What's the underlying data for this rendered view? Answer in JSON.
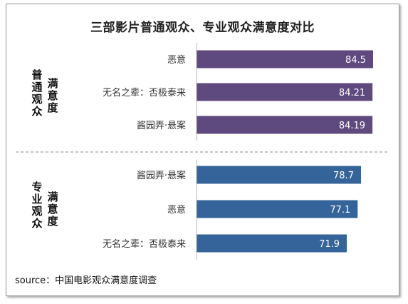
{
  "chart_data": {
    "type": "bar",
    "orientation": "horizontal",
    "title": "三部影片普通观众、专业观众满意度对比",
    "groups": [
      {
        "name_col1": "普通观众",
        "name_col2": "满意度",
        "categories": [
          "恶意",
          "无名之辈：否极泰来",
          "酱园弄·悬案"
        ],
        "values": [
          84.5,
          84.21,
          84.19
        ],
        "color": "#5f4a80"
      },
      {
        "name_col1": "专业观众",
        "name_col2": "满意度",
        "categories": [
          "酱园弄·悬案",
          "恶意",
          "无名之辈：否极泰来"
        ],
        "values": [
          78.7,
          77.1,
          71.9
        ],
        "color": "#35649a"
      }
    ],
    "source": "source：中国电影观众满意度调查",
    "grid": false,
    "legend": "none"
  }
}
